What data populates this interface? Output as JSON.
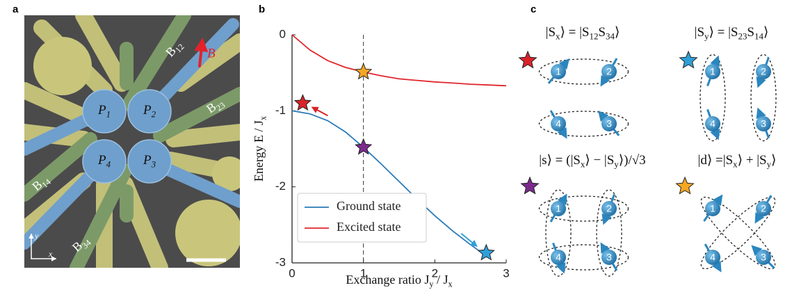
{
  "panel_labels": [
    "a",
    "b",
    "c"
  ],
  "device": {
    "field_label": "B",
    "gates": [
      [
        {
          "text": "B",
          "sub": "12"
        }
      ],
      [
        {
          "text": "B",
          "sub": "23"
        }
      ],
      [
        {
          "text": "B",
          "sub": "14"
        }
      ],
      [
        {
          "text": "B",
          "sub": "34"
        }
      ]
    ],
    "plungers": [
      [
        {
          "text": "P",
          "sub": "1"
        }
      ],
      [
        {
          "text": "P",
          "sub": "2"
        }
      ],
      [
        {
          "text": "P",
          "sub": "3"
        }
      ],
      [
        {
          "text": "P",
          "sub": "4"
        }
      ]
    ],
    "axes": [
      "x",
      "y"
    ]
  },
  "chart_data": {
    "type": "line",
    "x_label": [
      {
        "text": "Exchange ratio J",
        "sub": "y"
      },
      {
        "text": " / J",
        "sub": "x"
      }
    ],
    "y_label": [
      {
        "text": "Energy E / J",
        "sub": "x"
      }
    ],
    "x": [
      0,
      0.25,
      0.5,
      0.75,
      1,
      1.25,
      1.5,
      1.75,
      2,
      2.25,
      2.5,
      2.75,
      3
    ],
    "series": [
      {
        "name": "Ground state",
        "color": "#2a7ab8",
        "values": [
          -1,
          -1.04,
          -1.13,
          -1.28,
          -1.48,
          -1.7,
          -1.93,
          -2.16,
          -2.38,
          -2.58,
          -2.76,
          -2.93,
          null
        ]
      },
      {
        "name": "Excited state",
        "color": "#e0262b",
        "values": [
          0,
          -0.2,
          -0.34,
          -0.43,
          -0.49,
          -0.54,
          -0.58,
          -0.6,
          -0.62,
          -0.635,
          -0.65,
          -0.66,
          -0.67
        ]
      }
    ],
    "xlim": [
      0,
      3
    ],
    "ylim": [
      -3,
      0
    ],
    "xticks": [
      0,
      1,
      2,
      3
    ],
    "yticks": [
      0,
      -1,
      -2,
      -3
    ],
    "vline": 1,
    "markers": [
      {
        "x": 0.15,
        "y": -0.9,
        "color": "#d8232a"
      },
      {
        "x": 1,
        "y": -0.49,
        "color": "#f5a623"
      },
      {
        "x": 1,
        "y": -1.48,
        "color": "#7b2a8c"
      },
      {
        "x": 2.72,
        "y": -2.87,
        "color": "#2f9fd8"
      }
    ],
    "legend": "lower left"
  },
  "states": [
    {
      "star_color": "#d8232a",
      "formula": [
        {
          "text": "|S",
          "sub": "x"
        },
        {
          "text": "⟩ = |S",
          "sub": "12"
        },
        {
          "text": "S",
          "sub": "34"
        },
        {
          "text": "⟩"
        }
      ],
      "spins": [
        "1",
        "2",
        "3",
        "4"
      ]
    },
    {
      "star_color": "#2f9fd8",
      "formula": [
        {
          "text": "|S",
          "sub": "y"
        },
        {
          "text": "⟩ = |S",
          "sub": "23"
        },
        {
          "text": "S",
          "sub": "14"
        },
        {
          "text": "⟩"
        }
      ],
      "spins": [
        "1",
        "2",
        "3",
        "4"
      ]
    },
    {
      "star_color": "#7b2a8c",
      "formula": [
        {
          "text": "|s⟩ = (|S",
          "sub": "x"
        },
        {
          "text": "⟩ − |S",
          "sub": "y"
        },
        {
          "text": "⟩)/√3"
        }
      ],
      "spins": [
        "1",
        "2",
        "3",
        "4"
      ]
    },
    {
      "star_color": "#f5a623",
      "formula": [
        {
          "text": "|d⟩ =|S",
          "sub": "x"
        },
        {
          "text": "⟩ + |S",
          "sub": "y"
        },
        {
          "text": "⟩"
        }
      ],
      "spins": [
        "1",
        "2",
        "3",
        "4"
      ]
    }
  ]
}
